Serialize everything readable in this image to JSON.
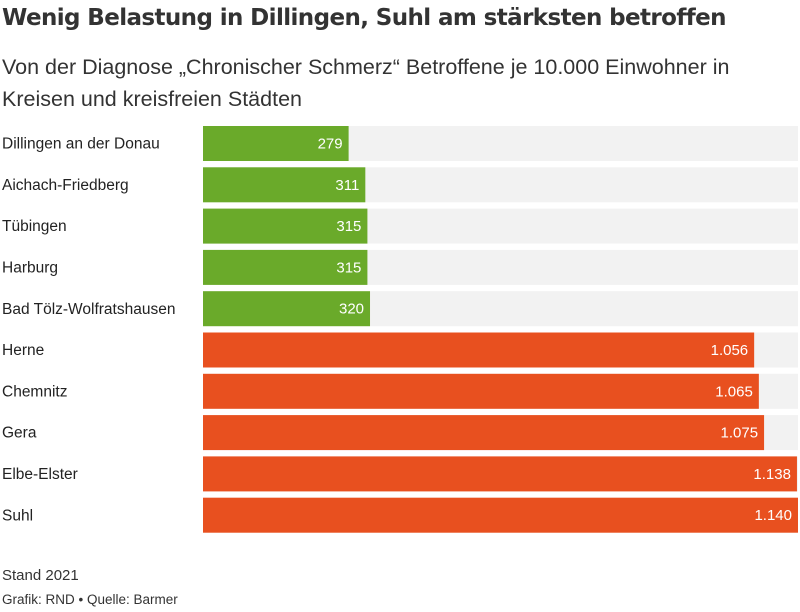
{
  "chart_data": {
    "type": "bar",
    "orientation": "horizontal",
    "title": "Wenig Belastung in Dillingen, Suhl am stärksten betroffen",
    "subtitle": "Von der Diagnose „Chronischer Schmerz“ Betroffene je 10.000 Einwohner in Kreisen und kreisfreien Städten",
    "categories": [
      "Dillingen an der Donau",
      "Aichach-Friedberg",
      "Tübingen",
      "Harburg",
      "Bad Tölz-Wolfratshausen",
      "Herne",
      "Chemnitz",
      "Gera",
      "Elbe-Elster",
      "Suhl"
    ],
    "values": [
      279,
      311,
      315,
      315,
      320,
      1056,
      1065,
      1075,
      1138,
      1140
    ],
    "value_labels": [
      "279",
      "311",
      "315",
      "315",
      "320",
      "1.056",
      "1.065",
      "1.075",
      "1.138",
      "1.140"
    ],
    "groups": [
      "low",
      "low",
      "low",
      "low",
      "low",
      "high",
      "high",
      "high",
      "high",
      "high"
    ],
    "colors": {
      "low": "#6aaa2a",
      "high": "#e8501f",
      "track": "#f2f2f2"
    },
    "xlim": [
      0,
      1140
    ],
    "grid": false,
    "legend": "none"
  },
  "footer": {
    "stand": "Stand 2021",
    "credit": "Grafik: RND • Quelle: Barmer"
  }
}
